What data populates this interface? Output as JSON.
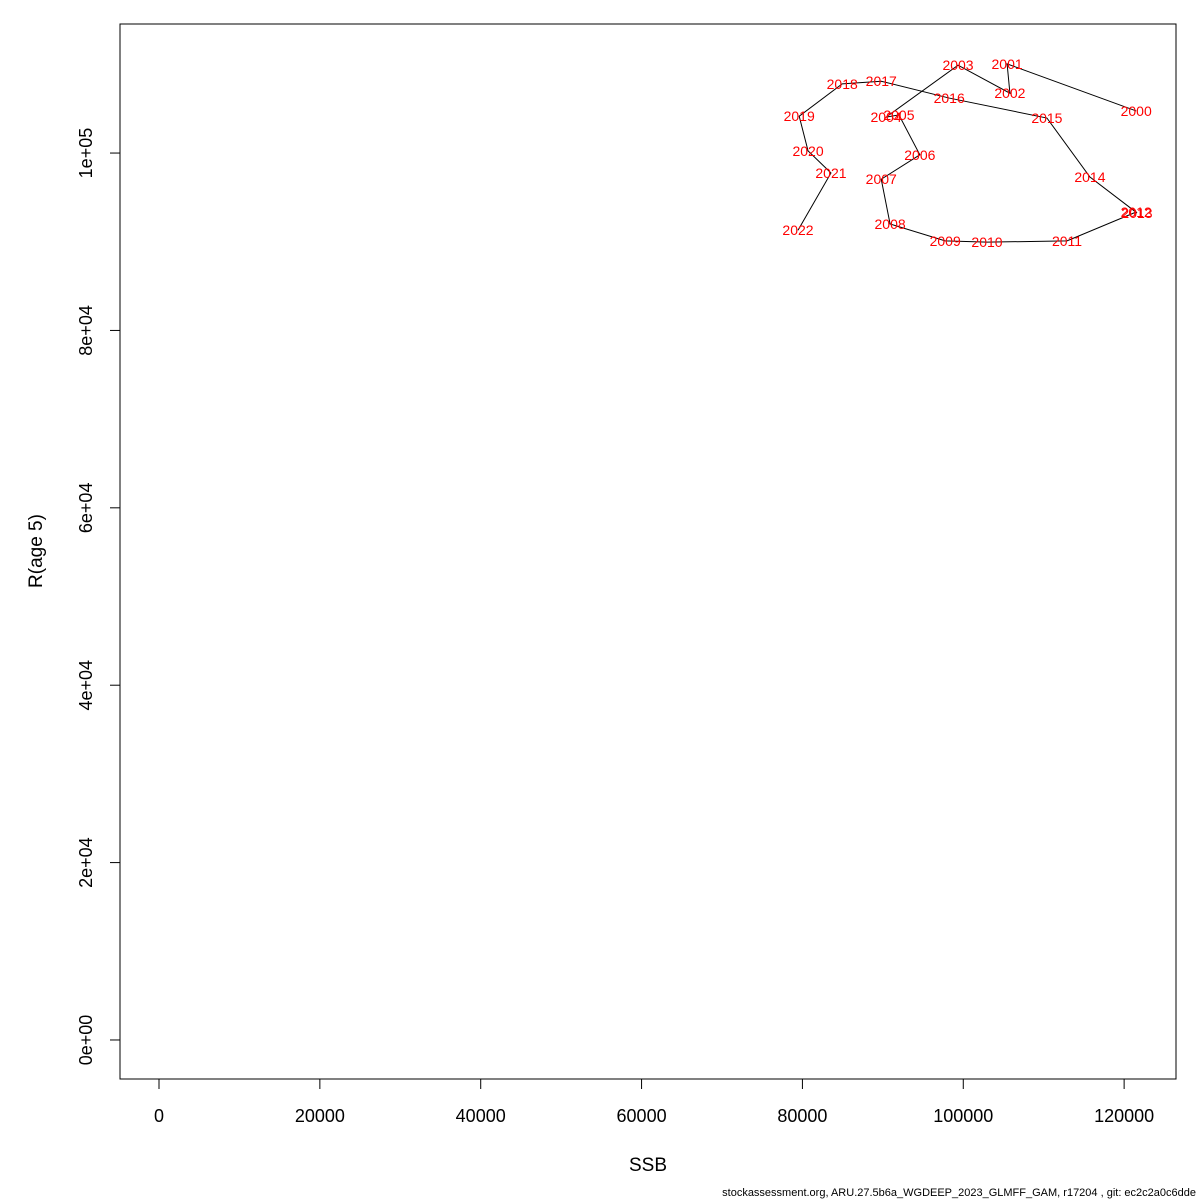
{
  "chart_data": {
    "type": "path",
    "xlabel": "SSB",
    "ylabel": "R(age 5)",
    "footer": "stockassessment.org, ARU.27.5b6a_WGDEEP_2023_GLMFF_GAM, r17204 , git: ec2c2a0c6dde",
    "labels": [
      "2000",
      "2001",
      "2002",
      "2003",
      "2004",
      "2005",
      "2006",
      "2007",
      "2008",
      "2009",
      "2010",
      "2011",
      "2012",
      "2013",
      "2014",
      "2015",
      "2016",
      "2017",
      "2018",
      "2019",
      "2020",
      "2021",
      "2022"
    ],
    "x": [
      121500,
      105450,
      105800,
      99350,
      90400,
      92000,
      94600,
      89800,
      90900,
      97750,
      102950,
      112900,
      121500,
      121600,
      115750,
      110400,
      98250,
      89800,
      84950,
      79600,
      80700,
      83550,
      79450
    ],
    "y": [
      104750,
      110050,
      106750,
      109900,
      104050,
      104300,
      99800,
      97050,
      92000,
      90100,
      89950,
      90100,
      93350,
      93250,
      97300,
      103950,
      106200,
      108100,
      107800,
      104150,
      100250,
      97750,
      91300
    ],
    "line_color": "#000000",
    "label_color": "#ff0000",
    "xlim": [
      -4850,
      126450
    ],
    "ylim": [
      -4400,
      114550
    ],
    "xticks": [
      0,
      20000,
      40000,
      60000,
      80000,
      100000,
      120000
    ],
    "yticks": [
      {
        "value": 0,
        "label": "0e+00"
      },
      {
        "value": 20000,
        "label": "2e+04"
      },
      {
        "value": 40000,
        "label": "4e+04"
      },
      {
        "value": 60000,
        "label": "6e+04"
      },
      {
        "value": 80000,
        "label": "8e+04"
      },
      {
        "value": 100000,
        "label": "1e+05"
      }
    ]
  }
}
